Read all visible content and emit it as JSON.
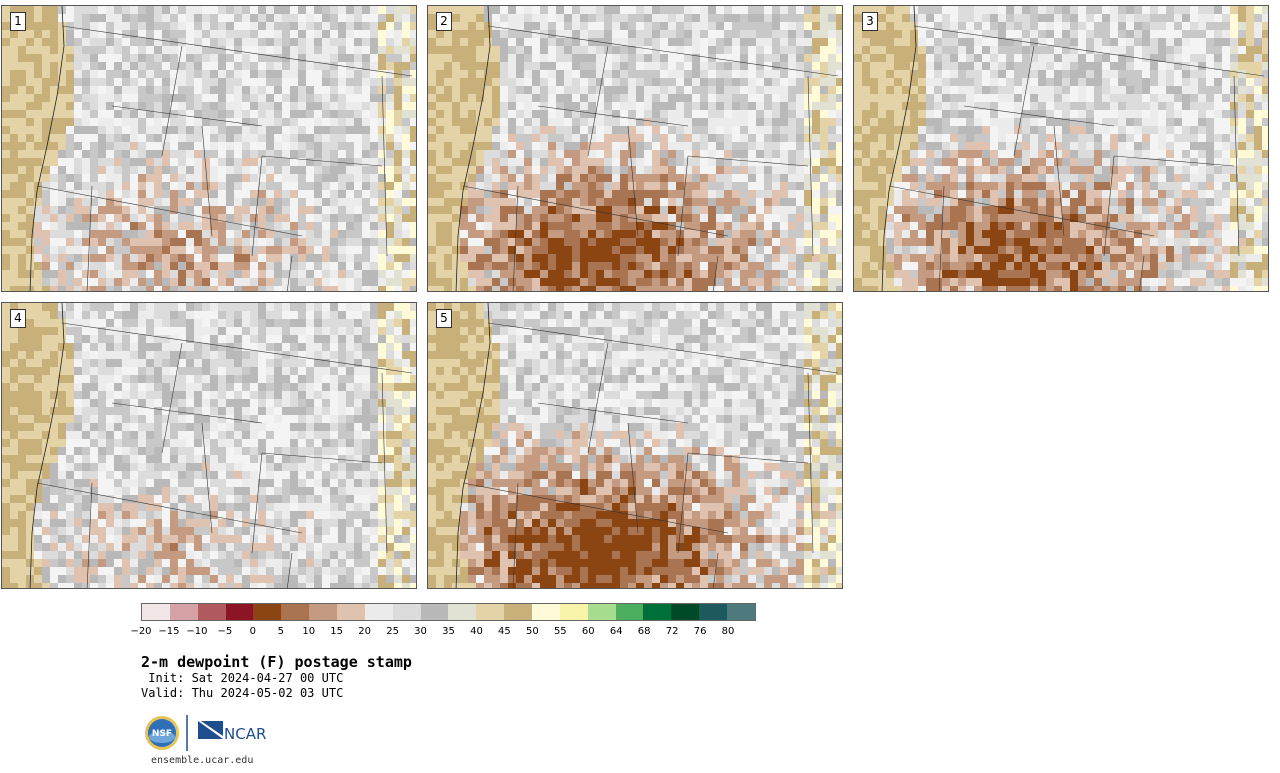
{
  "panels": [
    {
      "label": "1",
      "seed": 11,
      "dry": 0.55
    },
    {
      "label": "2",
      "seed": 23,
      "dry": 0.8
    },
    {
      "label": "3",
      "seed": 37,
      "dry": 0.75
    },
    {
      "label": "4",
      "seed": 41,
      "dry": 0.45
    },
    {
      "label": "5",
      "seed": 53,
      "dry": 0.85
    }
  ],
  "colorbar": {
    "colors": [
      "#f3e6e6",
      "#d6a1a4",
      "#b05a60",
      "#8b1524",
      "#8b4513",
      "#a97451",
      "#c49a80",
      "#dfc3b0",
      "#ececec",
      "#dcdcdc",
      "#b9b9b9",
      "#e2e2d4",
      "#e3d3a6",
      "#c8b07a",
      "#fffbd9",
      "#f8f5aa",
      "#a8dc8e",
      "#4caf60",
      "#00703a",
      "#004a28",
      "#1d5a5e",
      "#4e7a7e"
    ],
    "ticks": [
      "−20",
      "−15",
      "−10",
      "−5",
      "0",
      "5",
      "10",
      "15",
      "20",
      "25",
      "30",
      "35",
      "40",
      "45",
      "50",
      "55",
      "60",
      "64",
      "68",
      "72",
      "76",
      "80"
    ]
  },
  "title": "2-m dewpoint (F) postage stamp",
  "init": " Init: Sat 2024-04-27 00 UTC",
  "valid": "Valid: Thu 2024-05-02 03 UTC",
  "logos": {
    "nsf": "NSF",
    "ncar": "NCAR"
  },
  "site": "ensemble.ucar.edu"
}
